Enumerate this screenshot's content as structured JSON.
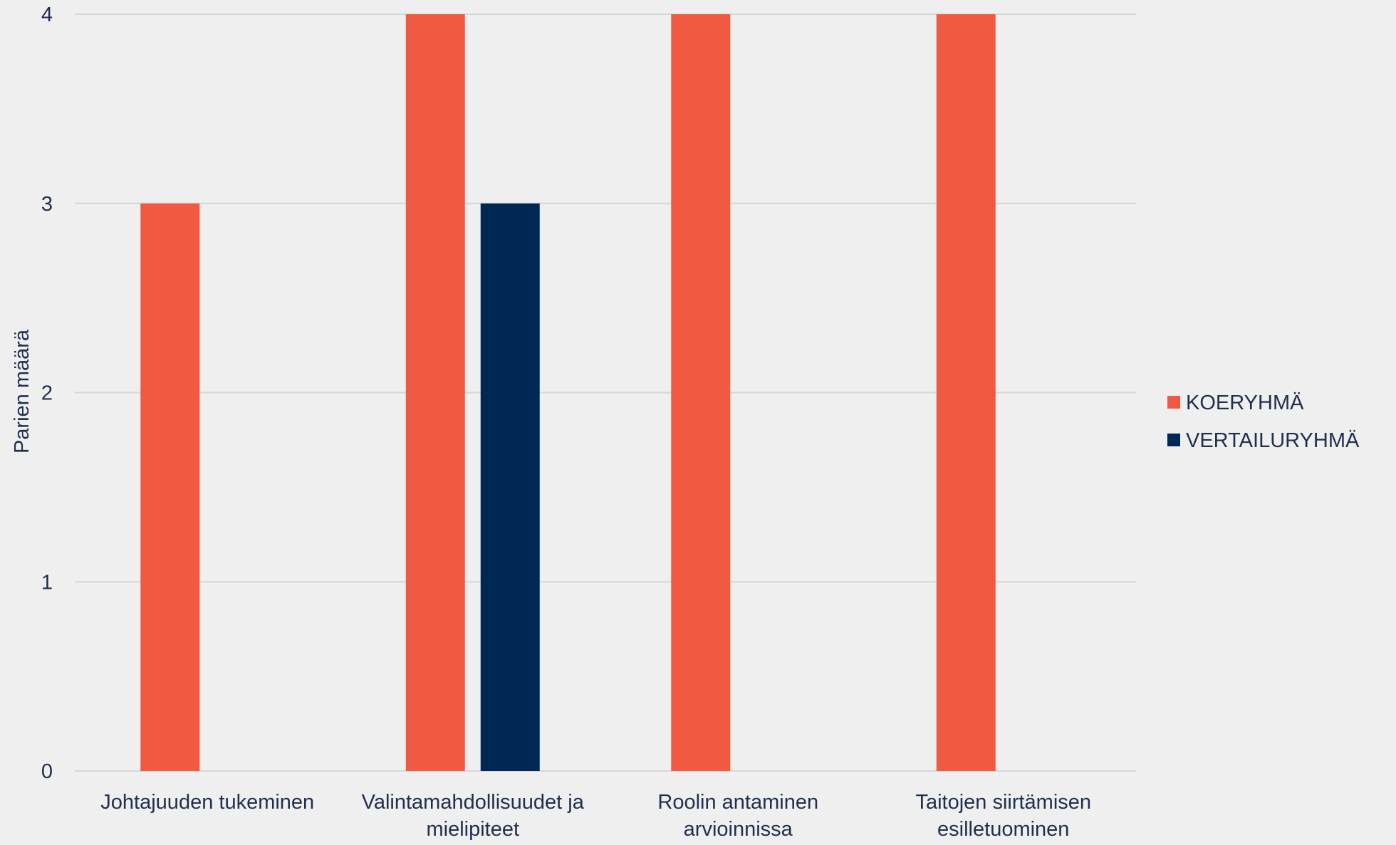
{
  "chart_data": {
    "type": "bar",
    "title": "",
    "xlabel": "",
    "ylabel": "Parien määrä",
    "ylim": [
      0,
      4
    ],
    "yticks": [
      "0",
      "1",
      "2",
      "3",
      "4"
    ],
    "categories": [
      [
        "Johtajuuden tukeminen"
      ],
      [
        "Valintamahdollisuudet ja",
        "mielipiteet"
      ],
      [
        "Roolin antaminen",
        "arvioinnissa"
      ],
      [
        "Taitojen siirtämisen",
        "esilletuominen"
      ]
    ],
    "series": [
      {
        "name": "KOERYHMÄ",
        "color": "#f15a40",
        "values": [
          3,
          4,
          4,
          4
        ]
      },
      {
        "name": "VERTAILURYHMÄ",
        "color": "#002855",
        "values": [
          0,
          3,
          0,
          0
        ]
      }
    ],
    "grid": true,
    "legend": "right"
  }
}
